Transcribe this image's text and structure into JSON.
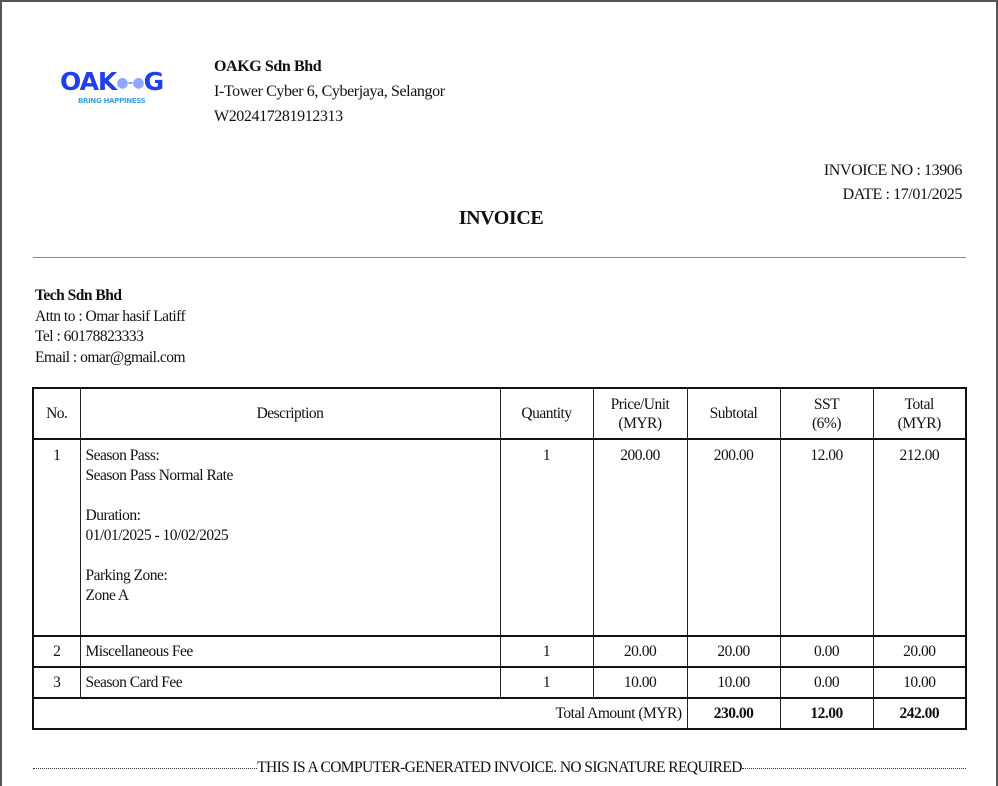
{
  "logo": {
    "text": "OAK",
    "text2": "G",
    "tagline": "BRING HAPPINESS",
    "color": "#1d3ff0"
  },
  "company": {
    "name": "OAKG Sdn Bhd",
    "address": "I-Tower Cyber 6, Cyberjaya, Selangor",
    "reg_no": "W202417281912313"
  },
  "invoice": {
    "number": "INVOICE NO : 13906",
    "date": "DATE : 17/01/2025",
    "title": "INVOICE"
  },
  "customer": {
    "name": "Tech Sdn Bhd",
    "attn": "Attn to : Omar hasif Latiff",
    "tel": "Tel : 60178823333",
    "email": "Email : omar@gmail.com"
  },
  "table": {
    "headers": {
      "no": "No.",
      "desc": "Description",
      "qty": "Quantity",
      "price1": "Price/Unit",
      "price2": "(MYR)",
      "subtotal": "Subtotal",
      "sst1": "SST",
      "sst2": "(6%)",
      "total1": "Total",
      "total2": "(MYR)"
    },
    "rows": [
      {
        "no": "1",
        "desc": [
          "Season Pass:",
          "Season Pass Normal Rate",
          "",
          "Duration:",
          "01/01/2025 - 10/02/2025",
          "",
          "Parking Zone:",
          "Zone A"
        ],
        "qty": "1",
        "price": "200.00",
        "subtotal": "200.00",
        "sst": "12.00",
        "total": "212.00"
      },
      {
        "no": "2",
        "desc": [
          "Miscellaneous Fee"
        ],
        "qty": "1",
        "price": "20.00",
        "subtotal": "20.00",
        "sst": "0.00",
        "total": "20.00"
      },
      {
        "no": "3",
        "desc": [
          "Season Card Fee"
        ],
        "qty": "1",
        "price": "10.00",
        "subtotal": "10.00",
        "sst": "0.00",
        "total": "10.00"
      }
    ],
    "totals": {
      "label": "Total Amount (MYR)",
      "subtotal": "230.00",
      "sst": "12.00",
      "total": "242.00"
    }
  },
  "footer": "THIS IS A COMPUTER-GENERATED INVOICE. NO SIGNATURE REQUIRED"
}
